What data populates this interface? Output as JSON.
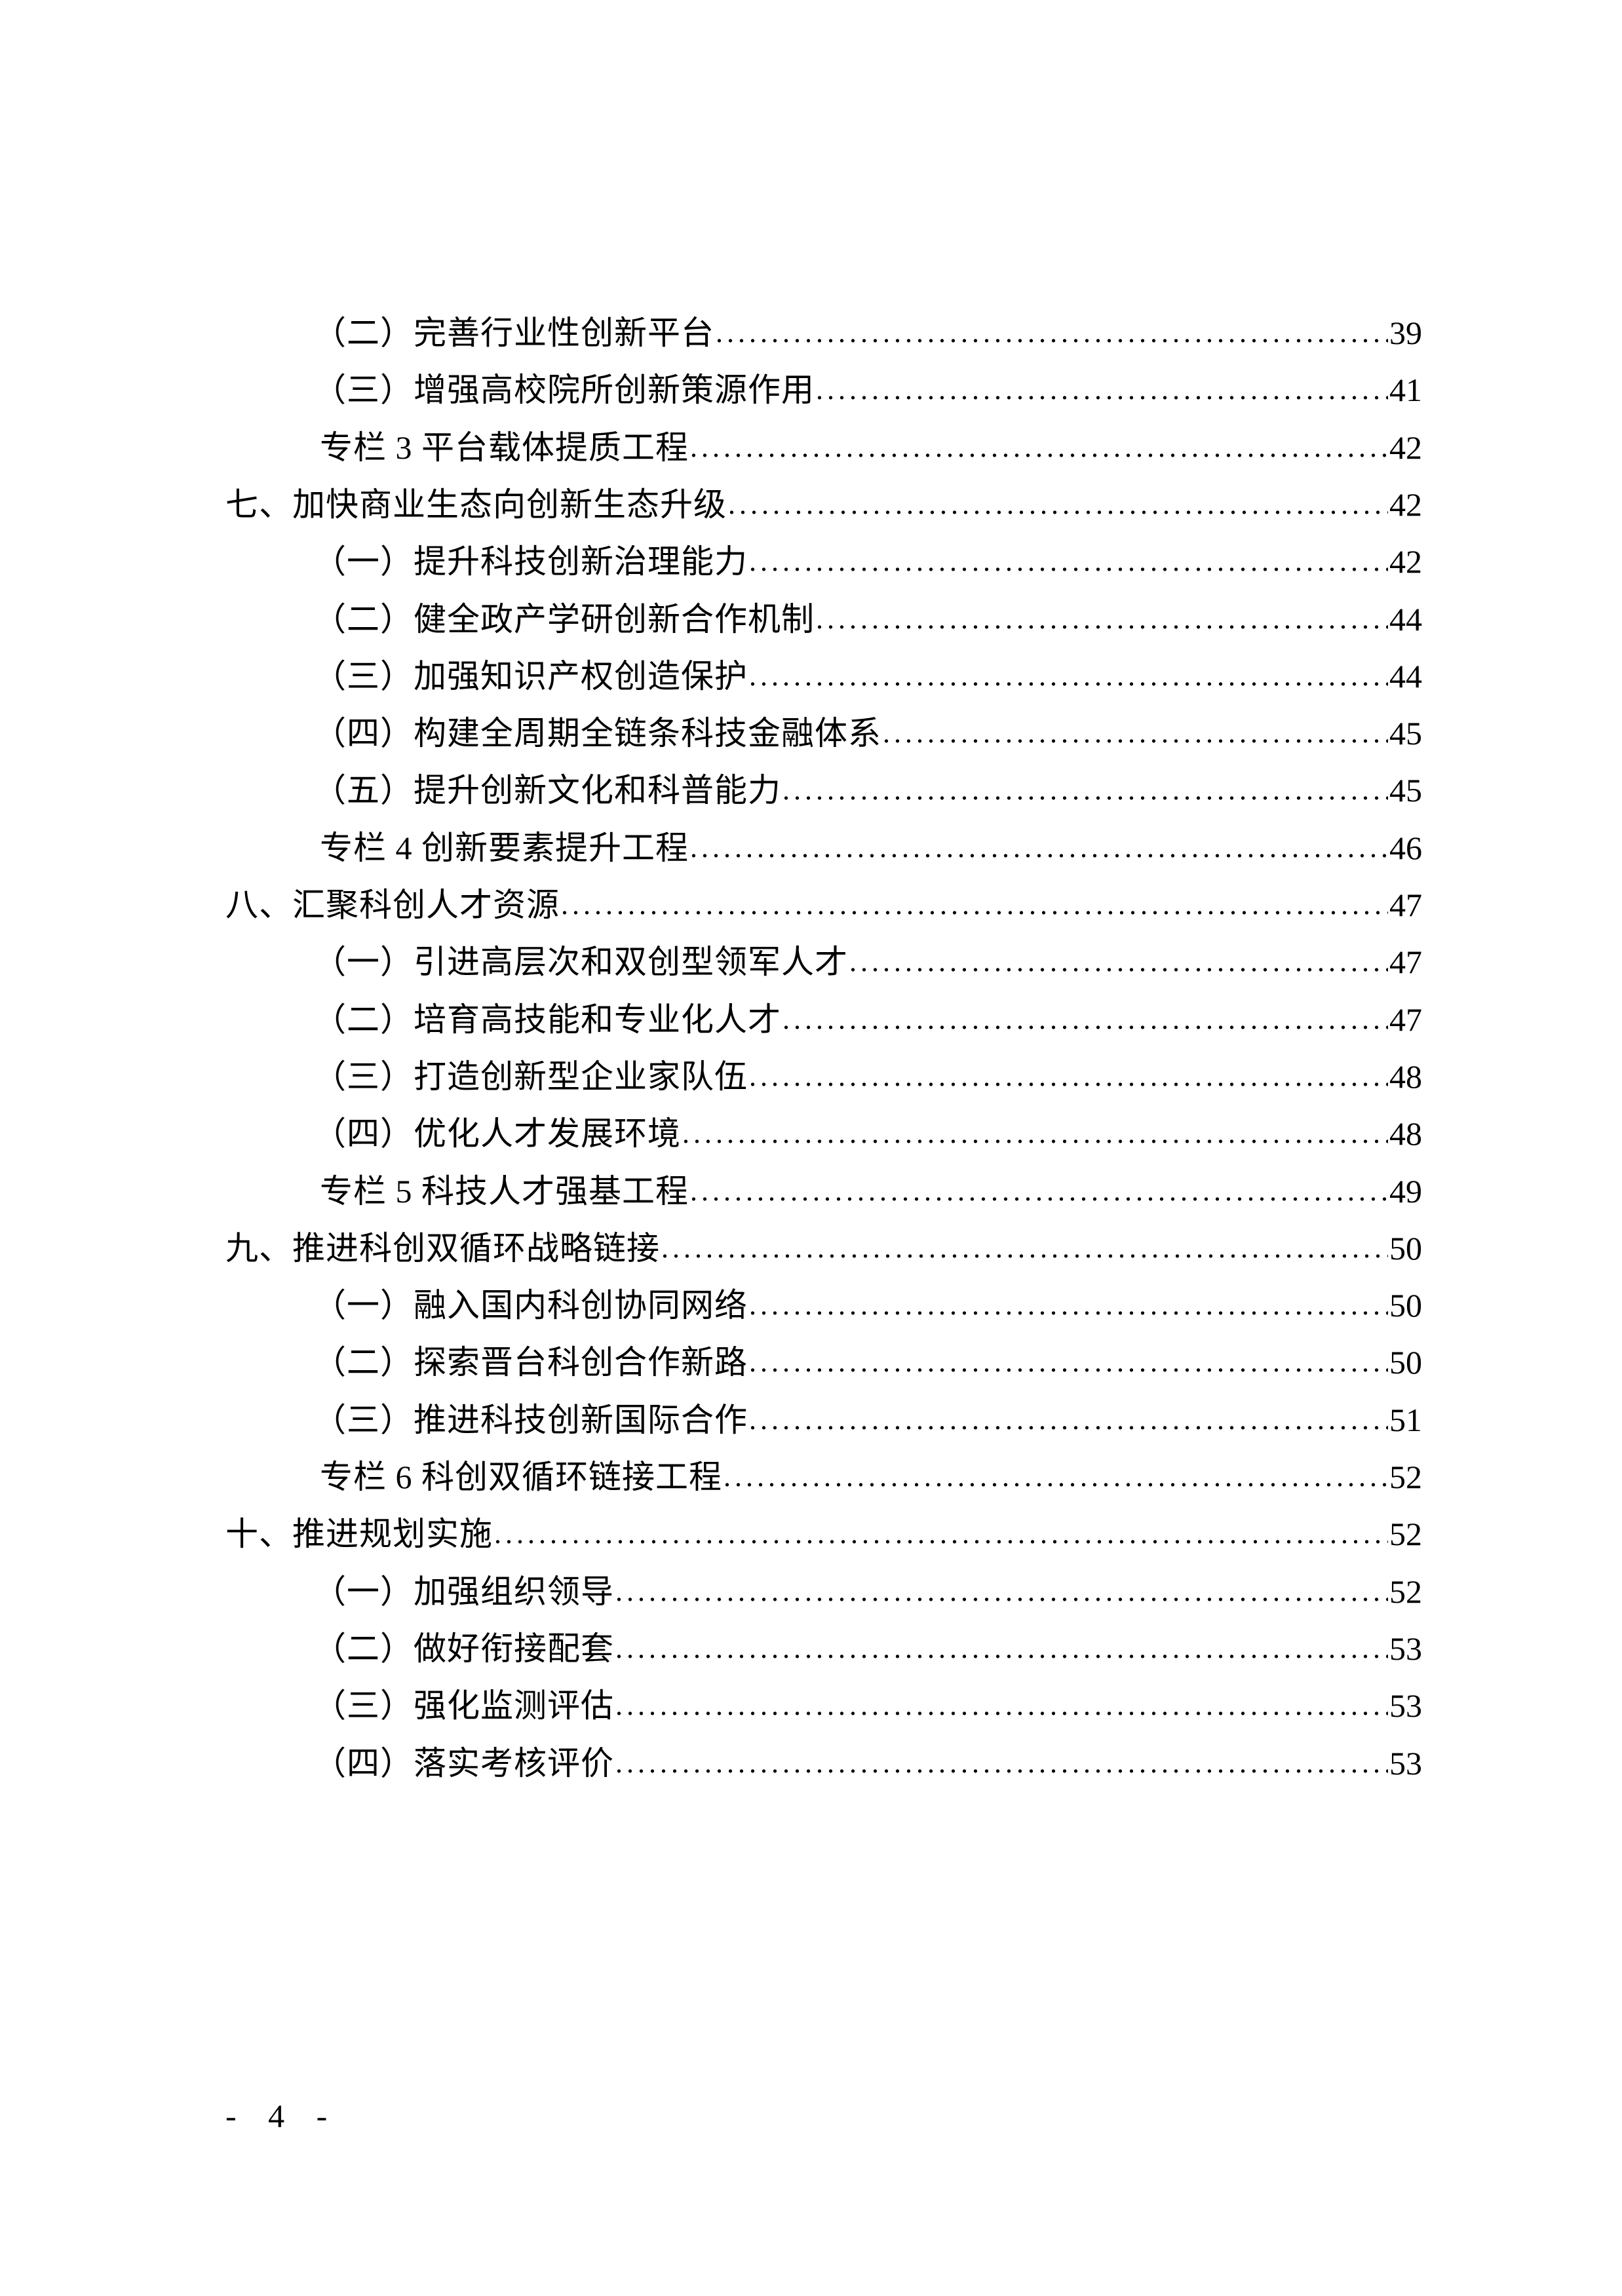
{
  "toc": [
    {
      "level": "section",
      "title": "（二）完善行业性创新平台",
      "page": "39"
    },
    {
      "level": "section",
      "title": "（三）增强高校院所创新策源作用",
      "page": "41"
    },
    {
      "level": "column",
      "title": "专栏 3 平台载体提质工程",
      "page": "42"
    },
    {
      "level": "chapter",
      "title": "七、加快商业生态向创新生态升级",
      "page": "42"
    },
    {
      "level": "section",
      "title": "（一）提升科技创新治理能力",
      "page": "42"
    },
    {
      "level": "section",
      "title": "（二）健全政产学研创新合作机制",
      "page": "44"
    },
    {
      "level": "section",
      "title": "（三）加强知识产权创造保护",
      "page": "44"
    },
    {
      "level": "section",
      "title": "（四）构建全周期全链条科技金融体系",
      "page": "45"
    },
    {
      "level": "section",
      "title": "（五）提升创新文化和科普能力",
      "page": "45"
    },
    {
      "level": "column",
      "title": "专栏 4 创新要素提升工程",
      "page": "46"
    },
    {
      "level": "chapter",
      "title": "八、汇聚科创人才资源",
      "page": "47"
    },
    {
      "level": "section",
      "title": "（一）引进高层次和双创型领军人才",
      "page": "47"
    },
    {
      "level": "section",
      "title": "（二）培育高技能和专业化人才",
      "page": "47"
    },
    {
      "level": "section",
      "title": "（三）打造创新型企业家队伍",
      "page": "48"
    },
    {
      "level": "section",
      "title": "（四）优化人才发展环境",
      "page": "48"
    },
    {
      "level": "column",
      "title": "专栏 5 科技人才强基工程",
      "page": "49"
    },
    {
      "level": "chapter",
      "title": "九、推进科创双循环战略链接",
      "page": "50"
    },
    {
      "level": "section",
      "title": "（一）融入国内科创协同网络",
      "page": "50"
    },
    {
      "level": "section",
      "title": "（二）探索晋台科创合作新路",
      "page": "50"
    },
    {
      "level": "section",
      "title": "（三）推进科技创新国际合作",
      "page": "51"
    },
    {
      "level": "column",
      "title": "专栏 6 科创双循环链接工程",
      "page": "52"
    },
    {
      "level": "chapter",
      "title": "十、推进规划实施",
      "page": "52"
    },
    {
      "level": "section",
      "title": "（一）加强组织领导",
      "page": "52"
    },
    {
      "level": "section",
      "title": "（二）做好衔接配套",
      "page": "53"
    },
    {
      "level": "section",
      "title": "（三）强化监测评估",
      "page": "53"
    },
    {
      "level": "section",
      "title": "（四）落实考核评价",
      "page": "53"
    }
  ],
  "footer": {
    "page_number": "- 4 -"
  }
}
